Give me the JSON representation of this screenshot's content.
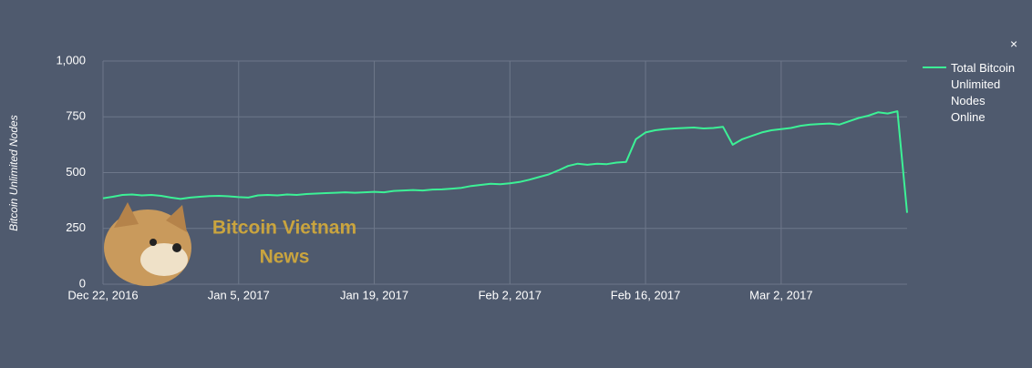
{
  "chart_data": {
    "type": "line",
    "y_axis_label": "Bitcoin Unlimited Nodes",
    "watermark": [
      "Bitcoin Vietnam",
      "News"
    ],
    "close_button": "×",
    "x": [
      "2016-12-22",
      "2016-12-23",
      "2016-12-24",
      "2016-12-25",
      "2016-12-26",
      "2016-12-27",
      "2016-12-28",
      "2016-12-29",
      "2016-12-30",
      "2016-12-31",
      "2017-01-01",
      "2017-01-02",
      "2017-01-03",
      "2017-01-04",
      "2017-01-05",
      "2017-01-06",
      "2017-01-07",
      "2017-01-08",
      "2017-01-09",
      "2017-01-10",
      "2017-01-11",
      "2017-01-12",
      "2017-01-13",
      "2017-01-14",
      "2017-01-15",
      "2017-01-16",
      "2017-01-17",
      "2017-01-18",
      "2017-01-19",
      "2017-01-20",
      "2017-01-21",
      "2017-01-22",
      "2017-01-23",
      "2017-01-24",
      "2017-01-25",
      "2017-01-26",
      "2017-01-27",
      "2017-01-28",
      "2017-01-29",
      "2017-01-30",
      "2017-01-31",
      "2017-02-01",
      "2017-02-02",
      "2017-02-03",
      "2017-02-04",
      "2017-02-05",
      "2017-02-06",
      "2017-02-07",
      "2017-02-08",
      "2017-02-09",
      "2017-02-10",
      "2017-02-11",
      "2017-02-12",
      "2017-02-13",
      "2017-02-14",
      "2017-02-15",
      "2017-02-16",
      "2017-02-17",
      "2017-02-18",
      "2017-02-19",
      "2017-02-20",
      "2017-02-21",
      "2017-02-22",
      "2017-02-23",
      "2017-02-24",
      "2017-02-25",
      "2017-02-26",
      "2017-02-27",
      "2017-02-28",
      "2017-03-01",
      "2017-03-02",
      "2017-03-03",
      "2017-03-04",
      "2017-03-05",
      "2017-03-06",
      "2017-03-07",
      "2017-03-08",
      "2017-03-09",
      "2017-03-10",
      "2017-03-11",
      "2017-03-12",
      "2017-03-13",
      "2017-03-14",
      "2017-03-15"
    ],
    "series": [
      {
        "name": "Total Bitcoin Unlimited Nodes Online",
        "color": "#3cf196",
        "values": [
          385,
          392,
          400,
          402,
          398,
          400,
          396,
          388,
          382,
          388,
          392,
          395,
          396,
          394,
          390,
          388,
          398,
          400,
          398,
          402,
          400,
          404,
          406,
          408,
          410,
          412,
          410,
          412,
          414,
          412,
          418,
          420,
          422,
          420,
          424,
          425,
          428,
          432,
          440,
          445,
          450,
          448,
          452,
          458,
          468,
          480,
          492,
          510,
          530,
          540,
          535,
          540,
          538,
          545,
          548,
          650,
          680,
          690,
          695,
          698,
          700,
          702,
          698,
          700,
          705,
          625,
          650,
          665,
          680,
          690,
          695,
          700,
          710,
          715,
          718,
          720,
          715,
          730,
          745,
          755,
          770,
          765,
          775,
          320
        ]
      }
    ],
    "xlim": [
      "2016-12-22",
      "2017-03-15"
    ],
    "xticks": [
      {
        "value": "2016-12-22",
        "label": "Dec 22, 2016"
      },
      {
        "value": "2017-01-05",
        "label": "Jan 5, 2017"
      },
      {
        "value": "2017-01-19",
        "label": "Jan 19, 2017"
      },
      {
        "value": "2017-02-02",
        "label": "Feb 2, 2017"
      },
      {
        "value": "2017-02-16",
        "label": "Feb 16, 2017"
      },
      {
        "value": "2017-03-02",
        "label": "Mar 2, 2017"
      }
    ],
    "ylim": [
      0,
      1000
    ],
    "yticks": [
      0,
      250,
      500,
      750,
      {
        "value": 1000,
        "label": "1,000"
      }
    ],
    "grid": true,
    "legend": "right"
  }
}
